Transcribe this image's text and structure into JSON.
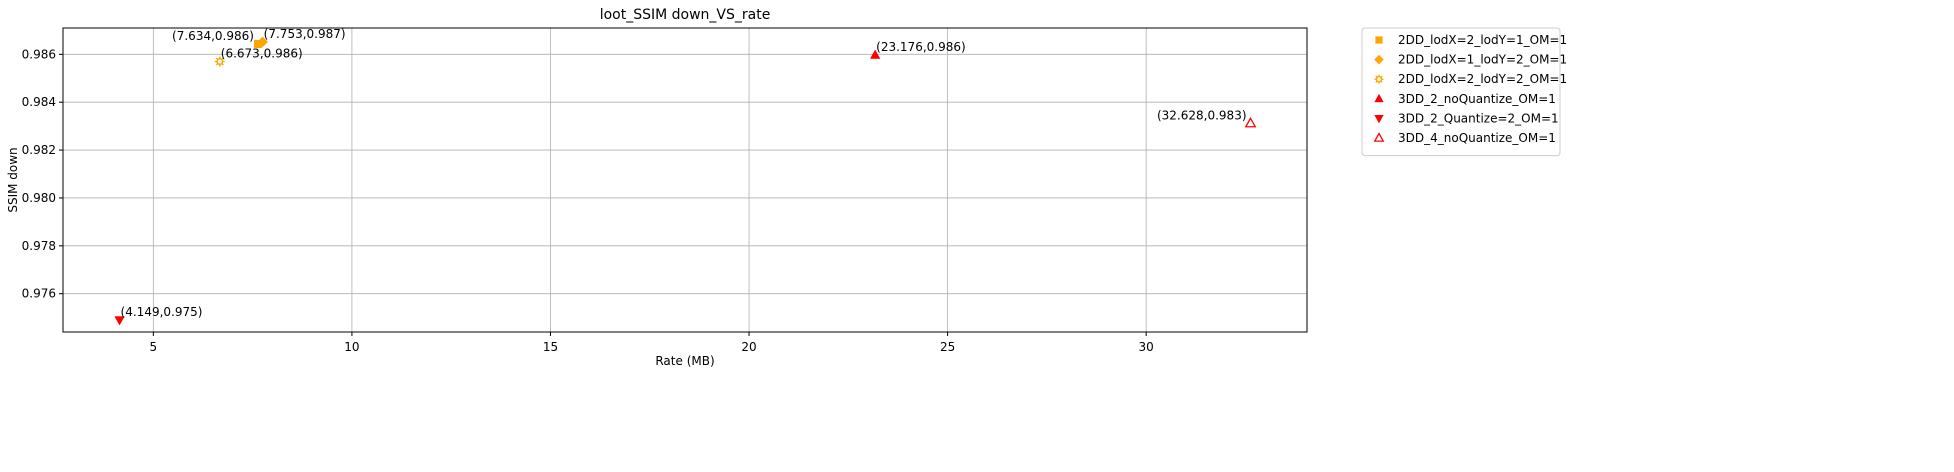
{
  "chart_data": {
    "type": "scatter",
    "title": "loot_SSIM down_VS_rate",
    "xlabel": "Rate (MB)",
    "ylabel": "SSIM down",
    "xlim": [
      2.725,
      34.05
    ],
    "ylim": [
      0.9744,
      0.9871
    ],
    "xticks": [
      5,
      10,
      15,
      20,
      25,
      30
    ],
    "xtick_labels": [
      "5",
      "10",
      "15",
      "20",
      "25",
      "30"
    ],
    "yticks": [
      0.976,
      0.978,
      0.98,
      0.982,
      0.984,
      0.986
    ],
    "ytick_labels": [
      "0.976",
      "0.978",
      "0.980",
      "0.982",
      "0.984",
      "0.986"
    ],
    "grid": true,
    "legend_position": "outside-top-right",
    "series": [
      {
        "name": "2DD_lodX=2_lodY=1_OM=1",
        "marker": "square",
        "color": "#ffa500",
        "filled": true,
        "points": [
          {
            "x": 7.634,
            "y": 0.98643
          }
        ],
        "labels": [
          "(7.634,0.986)"
        ],
        "label_anchor": "end"
      },
      {
        "name": "2DD_lodX=1_lodY=2_OM=1",
        "marker": "diamond",
        "color": "#ffa500",
        "filled": true,
        "points": [
          {
            "x": 7.753,
            "y": 0.98652
          }
        ],
        "labels": [
          "(7.753,0.987)"
        ],
        "label_anchor": "start"
      },
      {
        "name": "2DD_lodX=2_lodY=2_OM=1",
        "marker": "gear",
        "color": "#ffa500",
        "filled": false,
        "points": [
          {
            "x": 6.673,
            "y": 0.9857
          }
        ],
        "labels": [
          "(6.673,0.986)"
        ],
        "label_anchor": "start"
      },
      {
        "name": "3DD_2_noQuantize_OM=1",
        "marker": "triangle-up",
        "color": "#ff0000",
        "filled": true,
        "points": [
          {
            "x": 23.176,
            "y": 0.98597
          }
        ],
        "labels": [
          "(23.176,0.986)"
        ],
        "label_anchor": "start"
      },
      {
        "name": "3DD_2_Quantize=2_OM=1",
        "marker": "triangle-down",
        "color": "#ff0000",
        "filled": true,
        "points": [
          {
            "x": 4.149,
            "y": 0.9749
          }
        ],
        "labels": [
          "(4.149,0.975)"
        ],
        "label_anchor": "start"
      },
      {
        "name": "3DD_4_noQuantize_OM=1",
        "marker": "triangle-up",
        "color": "#ff0000",
        "filled": false,
        "points": [
          {
            "x": 32.628,
            "y": 0.98312
          }
        ],
        "labels": [
          "(32.628,0.983)"
        ],
        "label_anchor": "end"
      }
    ]
  }
}
